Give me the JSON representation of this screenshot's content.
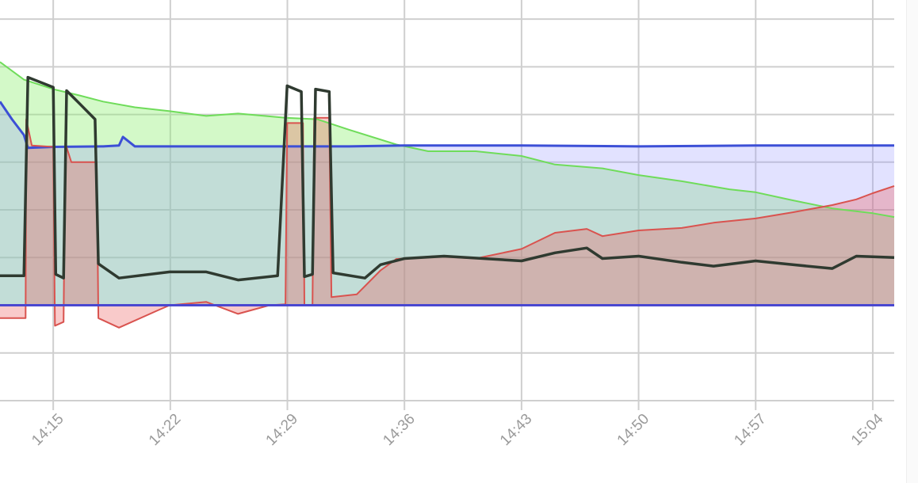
{
  "chart_data": {
    "type": "area",
    "title": "",
    "xlabel": "",
    "ylabel": "",
    "x_ticks": [
      "14:15",
      "14:22",
      "14:29",
      "14:36",
      "14:43",
      "14:50",
      "14:57",
      "15:04"
    ],
    "xlim": [
      "14:11:49",
      "15:05:17"
    ],
    "ylim": [
      -2,
      6.4
    ],
    "y_gridlines": [
      -2,
      -1,
      0,
      1,
      2,
      3,
      4,
      5,
      6
    ],
    "grid": true,
    "legend": "none",
    "series": [
      {
        "color": "#6fdc5a",
        "fill": "rgba(140,240,110,0.38)",
        "width": 2,
        "points": [
          [
            "14:11:49",
            5.1
          ],
          [
            "14:13:15",
            4.73
          ],
          [
            "14:15:00",
            4.53
          ],
          [
            "14:16:34",
            4.4
          ],
          [
            "14:17:59",
            4.27
          ],
          [
            "14:19:53",
            4.15
          ],
          [
            "14:21:58",
            4.07
          ],
          [
            "14:24:09",
            3.97
          ],
          [
            "14:26:03",
            4.02
          ],
          [
            "14:28:53",
            3.93
          ],
          [
            "14:30:47",
            3.9
          ],
          [
            "14:32:41",
            3.68
          ],
          [
            "14:35:31",
            3.37
          ],
          [
            "14:37:25",
            3.23
          ],
          [
            "14:40:16",
            3.23
          ],
          [
            "14:43:00",
            3.13
          ],
          [
            "14:45:00",
            2.95
          ],
          [
            "14:47:50",
            2.87
          ],
          [
            "14:50:00",
            2.73
          ],
          [
            "14:52:35",
            2.6
          ],
          [
            "14:55:26",
            2.43
          ],
          [
            "14:57:00",
            2.37
          ],
          [
            "14:59:13",
            2.2
          ],
          [
            "15:01:35",
            2.03
          ],
          [
            "15:04:00",
            1.93
          ],
          [
            "15:05:17",
            1.85
          ]
        ]
      },
      {
        "color": "#3c4fd6",
        "fill": "rgba(150,150,255,0.28)",
        "width": 3,
        "points": [
          [
            "14:11:49",
            4.27
          ],
          [
            "14:12:32",
            3.9
          ],
          [
            "14:13:15",
            3.57
          ],
          [
            "14:13:29",
            3.3
          ],
          [
            "14:15:00",
            3.32
          ],
          [
            "14:17:59",
            3.33
          ],
          [
            "14:18:56",
            3.35
          ],
          [
            "14:19:10",
            3.53
          ],
          [
            "14:19:53",
            3.33
          ],
          [
            "14:24:09",
            3.33
          ],
          [
            "14:28:53",
            3.33
          ],
          [
            "14:32:41",
            3.33
          ],
          [
            "14:36:00",
            3.35
          ],
          [
            "14:43:00",
            3.35
          ],
          [
            "14:50:00",
            3.33
          ],
          [
            "14:57:00",
            3.35
          ],
          [
            "15:04:00",
            3.35
          ],
          [
            "15:05:17",
            3.35
          ]
        ]
      },
      {
        "color": "#d9534f",
        "fill": "rgba(235,90,90,0.32)",
        "width": 2,
        "points": [
          [
            "14:11:49",
            -0.27
          ],
          [
            "14:13:21",
            -0.27
          ],
          [
            "14:13:23",
            3.9
          ],
          [
            "14:13:43",
            3.35
          ],
          [
            "14:15:00",
            3.32
          ],
          [
            "14:15:06",
            -0.43
          ],
          [
            "14:15:37",
            -0.35
          ],
          [
            "14:15:43",
            3.4
          ],
          [
            "14:16:05",
            3.0
          ],
          [
            "14:17:36",
            3.0
          ],
          [
            "14:17:42",
            -0.27
          ],
          [
            "14:18:56",
            -0.47
          ],
          [
            "14:21:18",
            -0.1
          ],
          [
            "14:21:58",
            0
          ],
          [
            "14:24:09",
            0.07
          ],
          [
            "14:26:03",
            -0.18
          ],
          [
            "14:27:56",
            0
          ],
          [
            "14:28:53",
            0.02
          ],
          [
            "14:28:59",
            3.82
          ],
          [
            "14:29:56",
            3.82
          ],
          [
            "14:30:01",
            0
          ],
          [
            "14:30:30",
            0
          ],
          [
            "14:30:36",
            3.93
          ],
          [
            "14:31:30",
            3.93
          ],
          [
            "14:31:38",
            0.17
          ],
          [
            "14:33:09",
            0.23
          ],
          [
            "14:34:34",
            0.73
          ],
          [
            "14:35:31",
            0.97
          ],
          [
            "14:37:53",
            1.03
          ],
          [
            "14:40:16",
            0.98
          ],
          [
            "14:43:00",
            1.18
          ],
          [
            "14:45:00",
            1.52
          ],
          [
            "14:46:54",
            1.6
          ],
          [
            "14:47:50",
            1.45
          ],
          [
            "14:50:00",
            1.57
          ],
          [
            "14:52:35",
            1.62
          ],
          [
            "14:54:29",
            1.73
          ],
          [
            "14:57:00",
            1.82
          ],
          [
            "14:59:13",
            1.95
          ],
          [
            "15:01:35",
            2.1
          ],
          [
            "15:03:01",
            2.22
          ],
          [
            "15:04:00",
            2.35
          ],
          [
            "15:05:17",
            2.5
          ]
        ]
      },
      {
        "color": "#2f3a30",
        "fill": "none",
        "width": 3.5,
        "points": [
          [
            "14:11:49",
            0.62
          ],
          [
            "14:13:15",
            0.62
          ],
          [
            "14:13:29",
            4.78
          ],
          [
            "14:15:00",
            4.57
          ],
          [
            "14:15:09",
            0.65
          ],
          [
            "14:15:37",
            0.57
          ],
          [
            "14:15:48",
            4.5
          ],
          [
            "14:16:34",
            4.23
          ],
          [
            "14:17:30",
            3.9
          ],
          [
            "14:17:42",
            0.87
          ],
          [
            "14:18:56",
            0.57
          ],
          [
            "14:21:58",
            0.7
          ],
          [
            "14:24:09",
            0.7
          ],
          [
            "14:26:03",
            0.53
          ],
          [
            "14:28:25",
            0.62
          ],
          [
            "14:28:59",
            4.6
          ],
          [
            "14:29:50",
            4.48
          ],
          [
            "14:30:01",
            0.6
          ],
          [
            "14:30:30",
            0.65
          ],
          [
            "14:30:41",
            4.53
          ],
          [
            "14:31:30",
            4.48
          ],
          [
            "14:31:44",
            0.68
          ],
          [
            "14:33:38",
            0.57
          ],
          [
            "14:34:34",
            0.85
          ],
          [
            "14:36:00",
            0.98
          ],
          [
            "14:38:22",
            1.03
          ],
          [
            "14:43:00",
            0.93
          ],
          [
            "14:45:00",
            1.1
          ],
          [
            "14:46:54",
            1.2
          ],
          [
            "14:47:50",
            0.98
          ],
          [
            "14:50:00",
            1.03
          ],
          [
            "14:52:35",
            0.9
          ],
          [
            "14:54:29",
            0.82
          ],
          [
            "14:57:00",
            0.93
          ],
          [
            "14:59:13",
            0.85
          ],
          [
            "15:01:35",
            0.77
          ],
          [
            "15:03:01",
            1.03
          ],
          [
            "15:05:17",
            1.0
          ]
        ]
      },
      {
        "color": "#4a48d0",
        "fill": "none",
        "width": 3,
        "points": [
          [
            "14:11:49",
            0
          ],
          [
            "15:05:17",
            0
          ]
        ]
      }
    ]
  }
}
